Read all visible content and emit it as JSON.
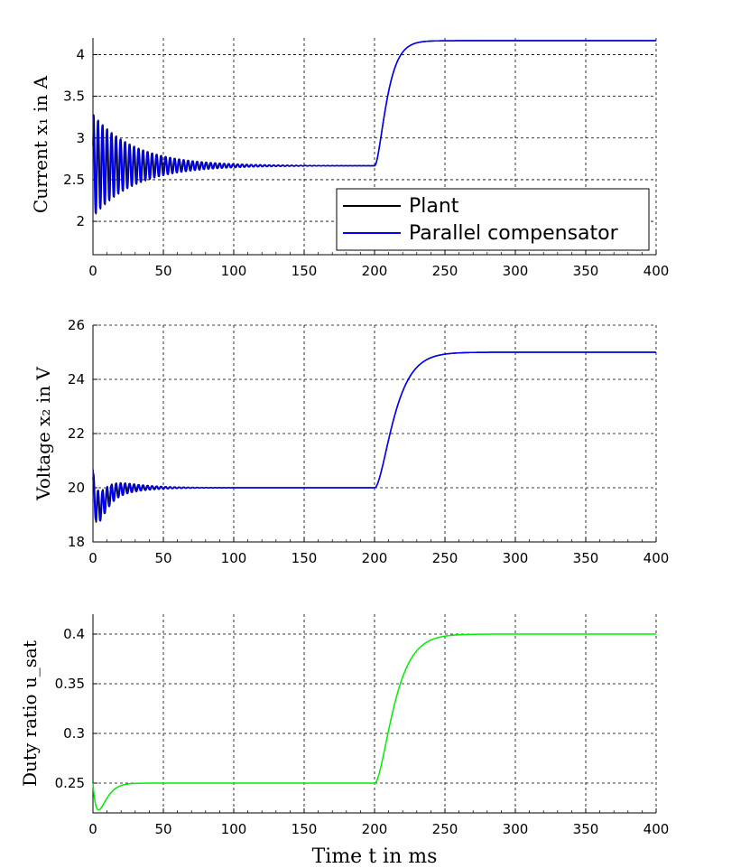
{
  "chart_data": [
    {
      "type": "line",
      "xlim": [
        0,
        400
      ],
      "ylim": [
        1.6,
        4.2
      ],
      "xticks": [
        0,
        50,
        100,
        150,
        200,
        250,
        300,
        350,
        400
      ],
      "yticks": [
        2,
        2.5,
        3,
        3.5,
        4
      ],
      "ytick_labels": [
        "2",
        "2.5",
        "3",
        "3.5",
        "4"
      ],
      "ylabel": "Current x₁ in A",
      "grid": true,
      "legend": "bottom-right",
      "series": [
        {
          "name": "Plant",
          "color": "#000000",
          "model": {
            "y0": 2.667,
            "y1": 4.167,
            "amp": 0.62,
            "decay": 30,
            "period": 3.2,
            "phase": 0.4,
            "step_t": 200,
            "step_tau": 5
          }
        },
        {
          "name": "Parallel compensator",
          "color": "#0000ff",
          "model": {
            "y0": 2.667,
            "y1": 4.167,
            "amp": 0.6,
            "decay": 30,
            "period": 3.2,
            "phase": 1.3,
            "step_t": 200,
            "step_tau": 5
          }
        }
      ]
    },
    {
      "type": "line",
      "xlim": [
        0,
        400
      ],
      "ylim": [
        18,
        26
      ],
      "xticks": [
        0,
        50,
        100,
        150,
        200,
        250,
        300,
        350,
        400
      ],
      "yticks": [
        18,
        20,
        22,
        24,
        26
      ],
      "ytick_labels": [
        "18",
        "20",
        "22",
        "24",
        "26"
      ],
      "ylabel": "Voltage x₂ in V",
      "grid": true,
      "series": [
        {
          "color": "#000000",
          "model": {
            "y0": 20,
            "y1": 25,
            "amp": 0.75,
            "decay": 18,
            "period": 3.2,
            "phase": 0.4,
            "step_t": 200,
            "step_tau": 8,
            "dip": -0.7
          }
        },
        {
          "color": "#0000ff",
          "model": {
            "y0": 20,
            "y1": 25,
            "amp": 0.7,
            "decay": 18,
            "period": 3.2,
            "phase": 1.3,
            "step_t": 200,
            "step_tau": 8,
            "dip": -0.7
          }
        }
      ]
    },
    {
      "type": "line",
      "xlim": [
        0,
        400
      ],
      "ylim": [
        0.22,
        0.42
      ],
      "xticks": [
        0,
        50,
        100,
        150,
        200,
        250,
        300,
        350,
        400
      ],
      "yticks": [
        0.25,
        0.3,
        0.35,
        0.4
      ],
      "ytick_labels": [
        "0.25",
        "0.3",
        "0.35",
        "0.4"
      ],
      "ylabel": "Duty ratio u_sat",
      "xlabel": "Time t in ms",
      "grid": true,
      "series": [
        {
          "color": "#00ee00",
          "model": {
            "y0": 0.25,
            "y1": 0.4,
            "amp": 0,
            "decay": 10,
            "period": 3.2,
            "phase": 0,
            "step_t": 200,
            "step_tau": 8,
            "dip": -0.027
          }
        }
      ]
    }
  ]
}
